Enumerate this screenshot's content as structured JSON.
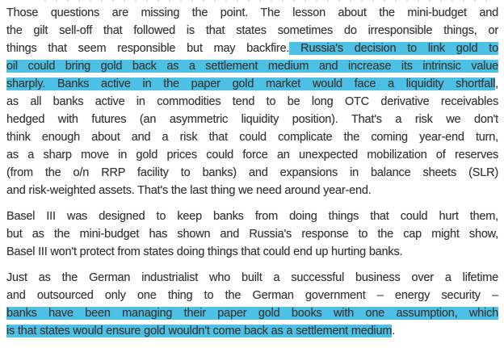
{
  "styles": {
    "background": "#ffffff",
    "text_color": "#3b3b3b",
    "highlight_color": "#4cc1e5"
  },
  "document": {
    "paragraphs": [
      {
        "lines": [
          {
            "last": false,
            "segments": [
              {
                "t": "Those questions are missing the point. The lesson about the mini-budget and",
                "h": false
              }
            ]
          },
          {
            "last": false,
            "segments": [
              {
                "t": "the gilt sell-off that followed is that states sometimes do irresponsible things, or",
                "h": false
              }
            ]
          },
          {
            "last": false,
            "segments": [
              {
                "t": "things that seem responsible but may backfire.",
                "h": false
              },
              {
                "t": " Russia's decision to link gold to",
                "h": true
              }
            ]
          },
          {
            "last": false,
            "segments": [
              {
                "t": "oil could bring gold back as a settlement medium and increase its intrinsic value",
                "h": true
              }
            ]
          },
          {
            "last": false,
            "segments": [
              {
                "t": "sharply. Banks active in the paper gold market would face a liquidity shortfall",
                "h": true
              },
              {
                "t": ",",
                "h": false
              }
            ]
          },
          {
            "last": false,
            "segments": [
              {
                "t": "as all banks active in commodities tend to be long OTC derivative receivables",
                "h": false
              }
            ]
          },
          {
            "last": false,
            "segments": [
              {
                "t": "hedged with futures (an asymmetric liquidity position). That's a risk we don't",
                "h": false
              }
            ]
          },
          {
            "last": false,
            "segments": [
              {
                "t": "think enough about and a risk that could complicate the coming year-end turn,",
                "h": false
              }
            ]
          },
          {
            "last": false,
            "segments": [
              {
                "t": "as a sharp move in gold prices could force an unexpected mobilization of reserves",
                "h": false
              }
            ]
          },
          {
            "last": false,
            "segments": [
              {
                "t": "(from the o/n RRP facility to banks) and expansions in balance sheets (SLR)",
                "h": false
              }
            ]
          },
          {
            "last": true,
            "segments": [
              {
                "t": "and risk-weighted assets. That's the last thing we need around year-end.",
                "h": false
              }
            ]
          }
        ]
      },
      {
        "lines": [
          {
            "last": false,
            "segments": [
              {
                "t": "Basel III was designed to keep banks from doing things that could hurt them,",
                "h": false
              }
            ]
          },
          {
            "last": false,
            "segments": [
              {
                "t": "but as the mini-budget has shown and Russia's response to the cap might show,",
                "h": false
              }
            ]
          },
          {
            "last": true,
            "segments": [
              {
                "t": "Basel III won't protect from states doing things that could end up hurting banks.",
                "h": false
              }
            ]
          }
        ]
      },
      {
        "lines": [
          {
            "last": false,
            "segments": [
              {
                "t": "Just as the German industrialist who built a successful business over a lifetime",
                "h": false
              }
            ]
          },
          {
            "last": false,
            "segments": [
              {
                "t": "and outsourced only one thing to the German government – energy security –",
                "h": false
              }
            ]
          },
          {
            "last": false,
            "segments": [
              {
                "t": "banks have been managing their paper gold books with one assumption, which",
                "h": true
              }
            ]
          },
          {
            "last": true,
            "segments": [
              {
                "t": "is that states would ensure gold wouldn't come back as a settlement medium",
                "h": true
              },
              {
                "t": ".",
                "h": false
              }
            ]
          }
        ]
      }
    ]
  }
}
